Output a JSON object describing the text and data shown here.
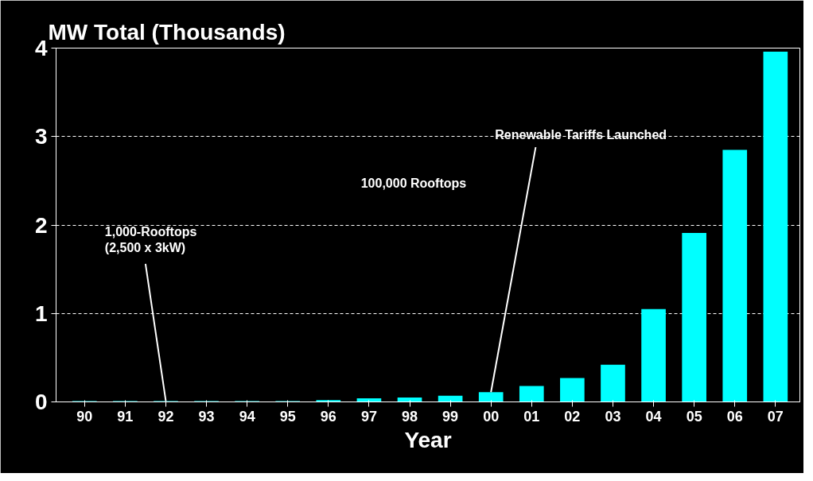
{
  "chart_data": {
    "type": "bar",
    "title": "MW Total (Thousands)",
    "xlabel": "Year",
    "categories": [
      "90",
      "91",
      "92",
      "93",
      "94",
      "95",
      "96",
      "97",
      "98",
      "99",
      "00",
      "01",
      "02",
      "03",
      "04",
      "05",
      "06",
      "07"
    ],
    "values": [
      0.01,
      0.01,
      0.01,
      0.01,
      0.01,
      0.01,
      0.02,
      0.04,
      0.05,
      0.07,
      0.11,
      0.18,
      0.27,
      0.42,
      1.05,
      1.91,
      2.85,
      3.96
    ],
    "color": "#00ffff",
    "ylim": [
      0,
      4
    ],
    "yticks": [
      0,
      1,
      2,
      3,
      4
    ],
    "grid": "y",
    "annotations": [
      {
        "text": "1,000-Rooftops\n(2,500 x 3kW)",
        "x": "92",
        "y": 0.01
      },
      "100,000 Rooftops",
      {
        "text": "Renewable Tariffs Launched",
        "x": "00",
        "y": 0.11
      }
    ]
  }
}
